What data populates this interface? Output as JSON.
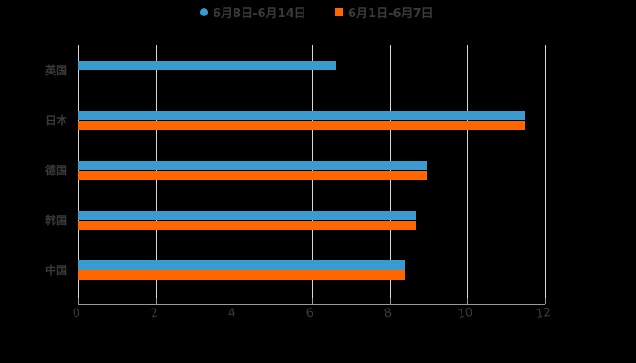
{
  "chart_data": {
    "type": "bar",
    "orientation": "horizontal",
    "title": "",
    "xlabel": "",
    "ylabel": "",
    "xlim": [
      0,
      12
    ],
    "x_ticks": [
      "0",
      "2",
      "4",
      "6",
      "8",
      "10",
      "12"
    ],
    "grid": true,
    "legend_position": "top",
    "categories": [
      "英国",
      "日本",
      "德国",
      "韩国",
      "中国"
    ],
    "series": [
      {
        "name": "6月8日-6月14日",
        "color": "#3a9bd0",
        "values": [
          6.62,
          11.49,
          8.97,
          8.69,
          8.41
        ]
      },
      {
        "name": "6月1日-6月7日",
        "color": "#ff6600",
        "values": [
          null,
          11.49,
          8.97,
          8.69,
          8.41
        ]
      }
    ]
  },
  "legend": {
    "items": [
      {
        "label": "6月8日-6月14日",
        "color": "#3a9bd0",
        "shape": "circle"
      },
      {
        "label": "6月1日-6月7日",
        "color": "#ff6600",
        "shape": "square"
      }
    ]
  }
}
